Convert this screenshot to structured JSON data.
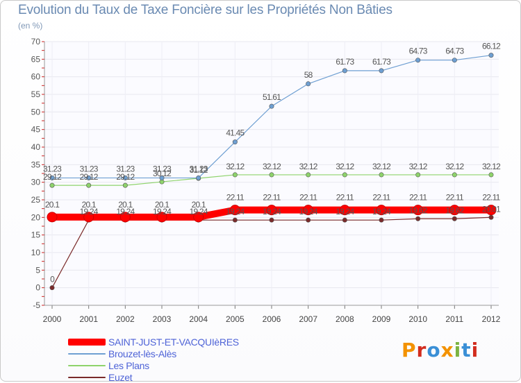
{
  "header": {
    "title": "Evolution du Taux de Taxe Foncière sur les Propriétés Non Bâties",
    "unit": "(en %)"
  },
  "brand": {
    "logo_text": "Proxiti",
    "logo_colors": [
      "#f39200",
      "#d22c1e",
      "#3a8fd6",
      "#f39200",
      "#7cb342",
      "#3a8fd6",
      "#d22c1e"
    ]
  },
  "chart_data": {
    "type": "line",
    "title": "Evolution du Taux de Taxe Foncière sur les Propriétés Non Bâties",
    "ylabel": "(en %)",
    "xlabel": "",
    "ylim": [
      -5,
      70
    ],
    "yticks": [
      -5,
      0,
      5,
      10,
      15,
      20,
      25,
      30,
      35,
      40,
      45,
      50,
      55,
      60,
      65,
      70
    ],
    "grid": true,
    "x": [
      "2000",
      "2001",
      "2002",
      "2003",
      "2004",
      "2005",
      "2006",
      "2007",
      "2008",
      "2009",
      "2010",
      "2011",
      "2012"
    ],
    "series": [
      {
        "name": "SAINT-JUST-ET-VACQUIèRES",
        "color": "#ff0000",
        "values": [
          20.1,
          20.1,
          20.1,
          20.1,
          20.1,
          22.11,
          22.11,
          22.11,
          22.11,
          22.11,
          22.11,
          22.11,
          22.11
        ],
        "labels": [
          "20.1",
          "20.1",
          "20.1",
          "20.1",
          "20.1",
          "22.11",
          "22.11",
          "22.11",
          "22.11",
          "22.11",
          "22.11",
          "22.11",
          "22.11"
        ]
      },
      {
        "name": "Brouzet-lès-Alès",
        "color": "#6e9fd2",
        "values": [
          31.23,
          31.23,
          31.23,
          31.23,
          31.23,
          41.45,
          51.61,
          58,
          61.73,
          61.73,
          64.73,
          64.73,
          66.12
        ],
        "labels": [
          "31.23",
          "31.23",
          "31.23",
          "31.23",
          "31.23",
          "41.45",
          "51.61",
          "58",
          "61.73",
          "61.73",
          "64.73",
          "64.73",
          "66.12"
        ]
      },
      {
        "name": "Les Plans",
        "color": "#8ed36b",
        "values": [
          29.12,
          29.12,
          29.12,
          30.12,
          31.12,
          32.12,
          32.12,
          32.12,
          32.12,
          32.12,
          32.12,
          32.12,
          32.12
        ],
        "labels": [
          "29.12",
          "29.12",
          "29.12",
          "30.12",
          "31.12",
          "32.12",
          "32.12",
          "32.12",
          "32.12",
          "32.12",
          "32.12",
          "32.12",
          "32.12"
        ]
      },
      {
        "name": "Euzet",
        "color": "#7a2a2a",
        "values": [
          0,
          19.24,
          19.24,
          19.24,
          19.24,
          19.24,
          19.24,
          19.24,
          19.24,
          19.24,
          19.62,
          19.62,
          20.01
        ],
        "labels": [
          "0",
          "19.24",
          "19.24",
          "19.24",
          "19.24",
          "19.24",
          "19.24",
          "19.24",
          "19.24",
          "19.24",
          "19.62",
          "19.62",
          "20.01"
        ]
      }
    ]
  }
}
